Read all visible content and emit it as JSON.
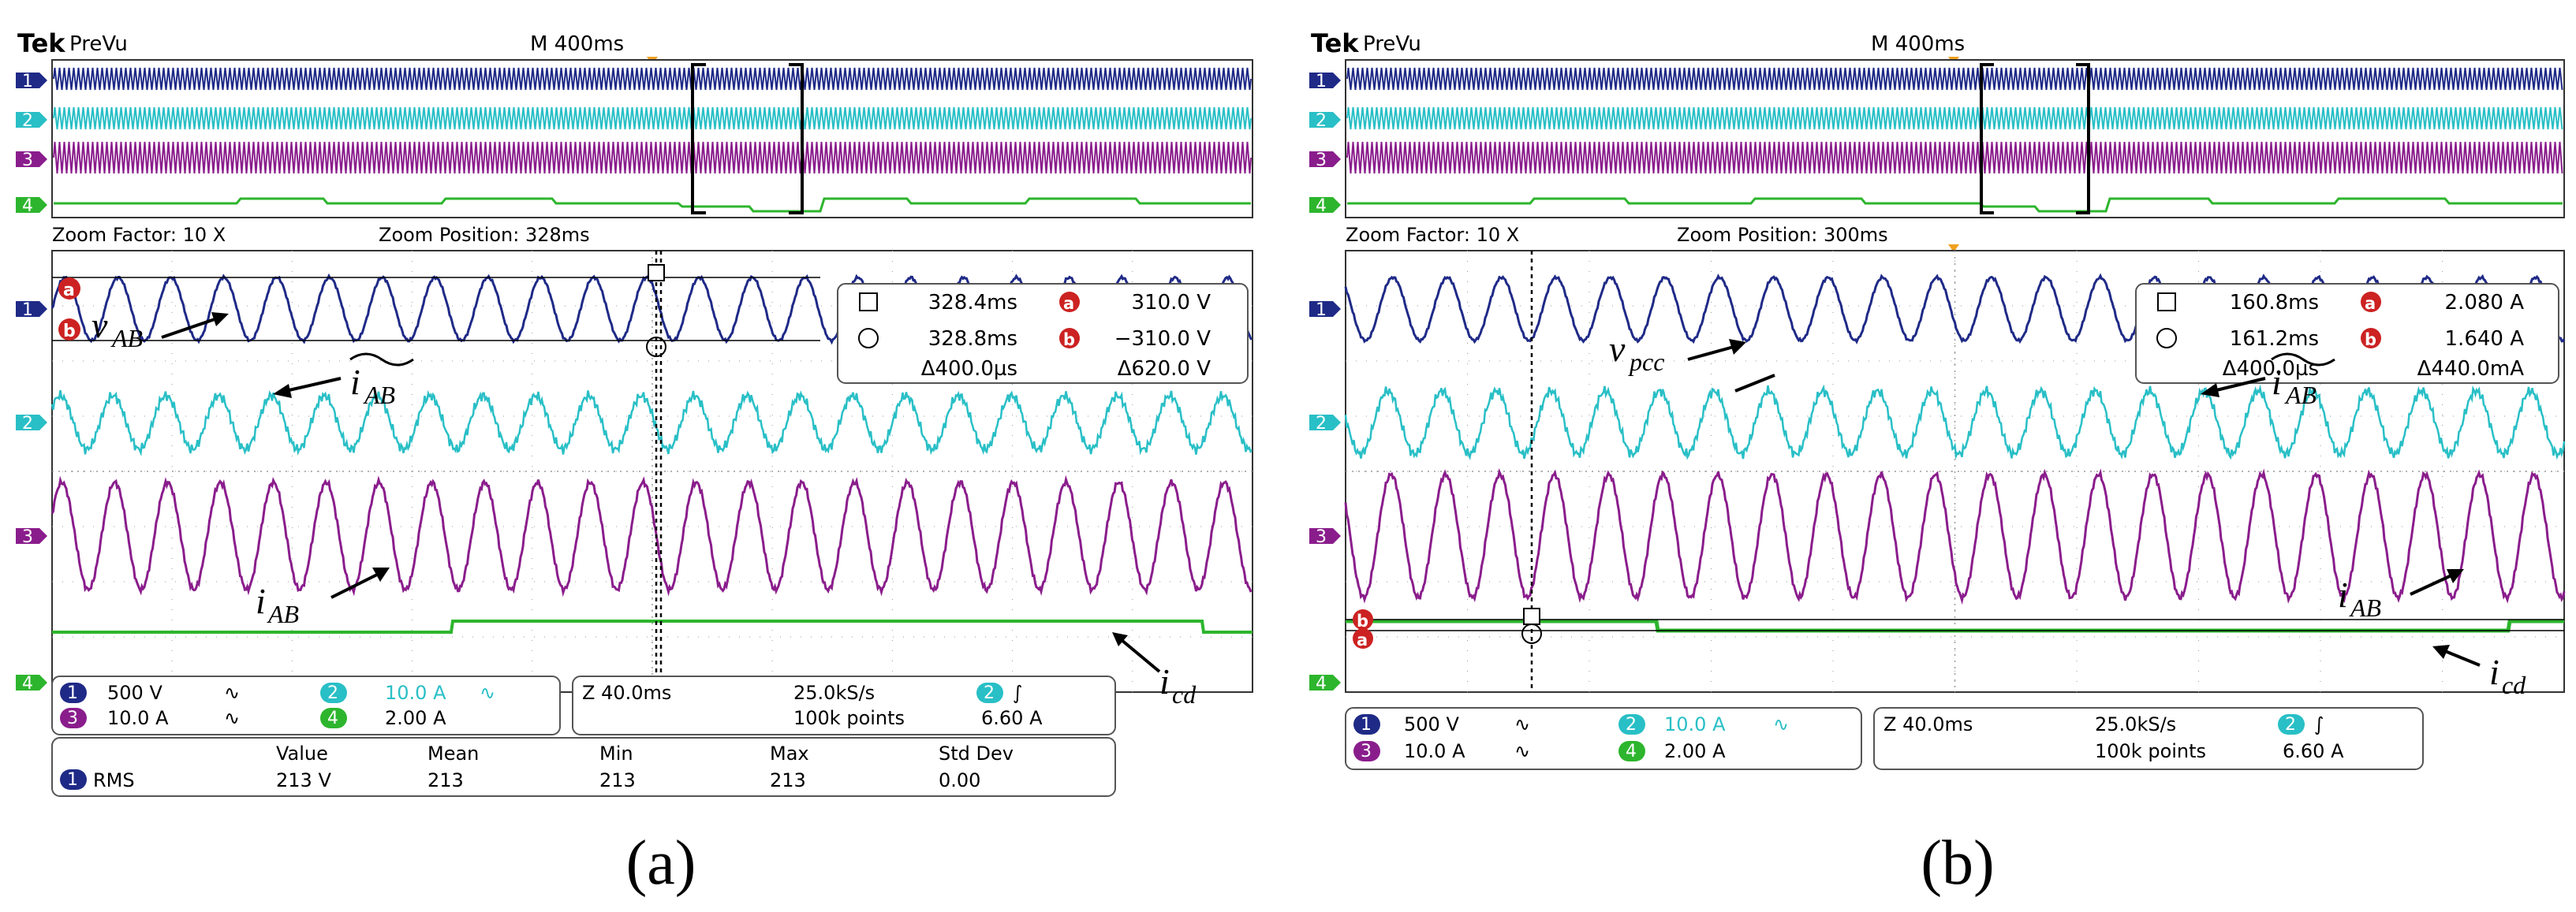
{
  "colors": {
    "ch1": "#1f2a87",
    "ch2": "#29bfc6",
    "ch3": "#8a1d8c",
    "ch4": "#2db52d",
    "grid": "#9a9a9a",
    "border": "#333333",
    "marker": "#cc2222",
    "trigger": "#f0a020"
  },
  "panels": [
    {
      "id": "a",
      "caption": "(a)",
      "brand": "Tek",
      "mode": "PreVu",
      "timebase": "M 400ms",
      "zoom_factor": "Zoom Factor: 10 X",
      "zoom_position": "Zoom Position: 328ms",
      "channel_numbers": [
        "1",
        "2",
        "3",
        "4"
      ],
      "cursor_labels": [
        "a",
        "b"
      ],
      "cursor": {
        "t1": "328.4ms",
        "t2": "328.8ms",
        "dt": "Δ400.0µs",
        "v1": "310.0 V",
        "v2": "−310.0 V",
        "dv": "Δ620.0 V"
      },
      "annotations": [
        {
          "base": "v",
          "sub": "AB",
          "tilde": false
        },
        {
          "base": "i",
          "sub": "AB",
          "tilde": true
        },
        {
          "base": "i",
          "sub": "AB",
          "tilde": false
        },
        {
          "base": "i",
          "sub": "cd",
          "tilde": false
        }
      ],
      "channel_settings": {
        "ch1": {
          "scale": "500 V",
          "coupling": "∿"
        },
        "ch2": {
          "scale": "10.0 A",
          "coupling": "∿"
        },
        "ch3": {
          "scale": "10.0 A",
          "coupling": "∿"
        },
        "ch4": {
          "scale": "2.00 A"
        }
      },
      "acquisition": {
        "zoom_time": "Z 40.0ms",
        "sample_rate": "25.0kS/s",
        "record_length": "100k points",
        "trigger_channel": "2",
        "trigger_slope": "∫",
        "trigger_level": "6.60 A"
      },
      "measurement": {
        "headers": [
          "Value",
          "Mean",
          "Min",
          "Max",
          "Std Dev"
        ],
        "channel": "1",
        "type": "RMS",
        "values": [
          "213 V",
          "213",
          "213",
          "213",
          "0.00"
        ]
      }
    },
    {
      "id": "b",
      "caption": "(b)",
      "brand": "Tek",
      "mode": "PreVu",
      "timebase": "M 400ms",
      "zoom_factor": "Zoom Factor: 10 X",
      "zoom_position": "Zoom Position: 300ms",
      "channel_numbers": [
        "1",
        "2",
        "3",
        "4"
      ],
      "cursor_labels": [
        "a",
        "b"
      ],
      "cursor": {
        "t1": "160.8ms",
        "t2": "161.2ms",
        "dt": "Δ400.0µs",
        "v1": "2.080 A",
        "v2": "1.640 A",
        "dv": "Δ440.0mA"
      },
      "annotations": [
        {
          "base": "v",
          "sub": "pcc",
          "tilde": false
        },
        {
          "base": "i",
          "sub": "AB",
          "tilde": true
        },
        {
          "base": "i",
          "sub": "AB",
          "tilde": false
        },
        {
          "base": "i",
          "sub": "cd",
          "tilde": false
        }
      ],
      "channel_settings": {
        "ch1": {
          "scale": "500 V",
          "coupling": "∿"
        },
        "ch2": {
          "scale": "10.0 A",
          "coupling": "∿"
        },
        "ch3": {
          "scale": "10.0 A",
          "coupling": "∿"
        },
        "ch4": {
          "scale": "2.00 A"
        }
      },
      "acquisition": {
        "zoom_time": "Z 40.0ms",
        "sample_rate": "25.0kS/s",
        "record_length": "100k points",
        "trigger_channel": "2",
        "trigger_slope": "∫",
        "trigger_level": "6.60 A"
      }
    }
  ]
}
